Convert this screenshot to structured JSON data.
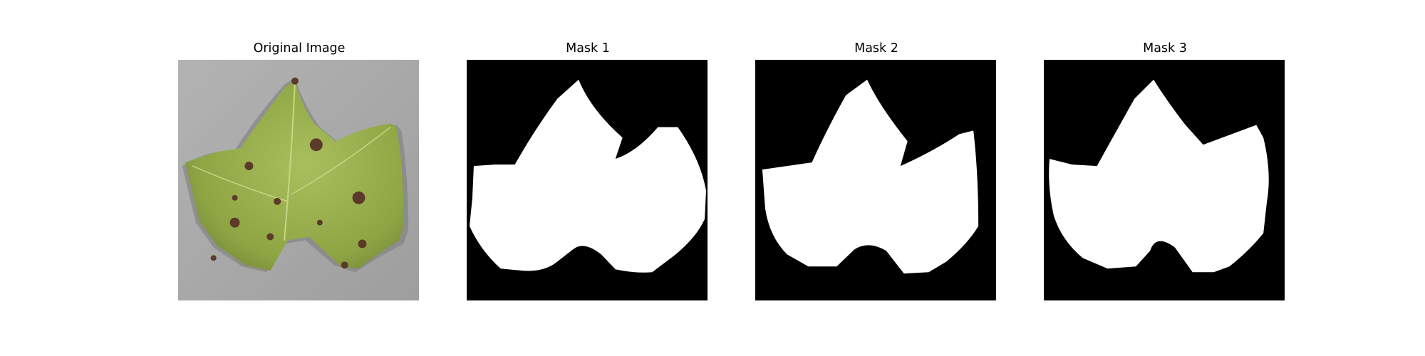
{
  "figure": {
    "panels": [
      {
        "title": "Original Image",
        "kind": "photo-leaf"
      },
      {
        "title": "Mask 1",
        "kind": "binary-mask"
      },
      {
        "title": "Mask 2",
        "kind": "binary-mask"
      },
      {
        "title": "Mask 3",
        "kind": "binary-mask"
      }
    ]
  },
  "colors": {
    "background": "#ffffff",
    "mask_background": "#000000",
    "mask_foreground": "#ffffff",
    "paper_gray": "#a9a9a9",
    "leaf_green": "#9bb24f",
    "leaf_spot": "#5b3a2a"
  }
}
